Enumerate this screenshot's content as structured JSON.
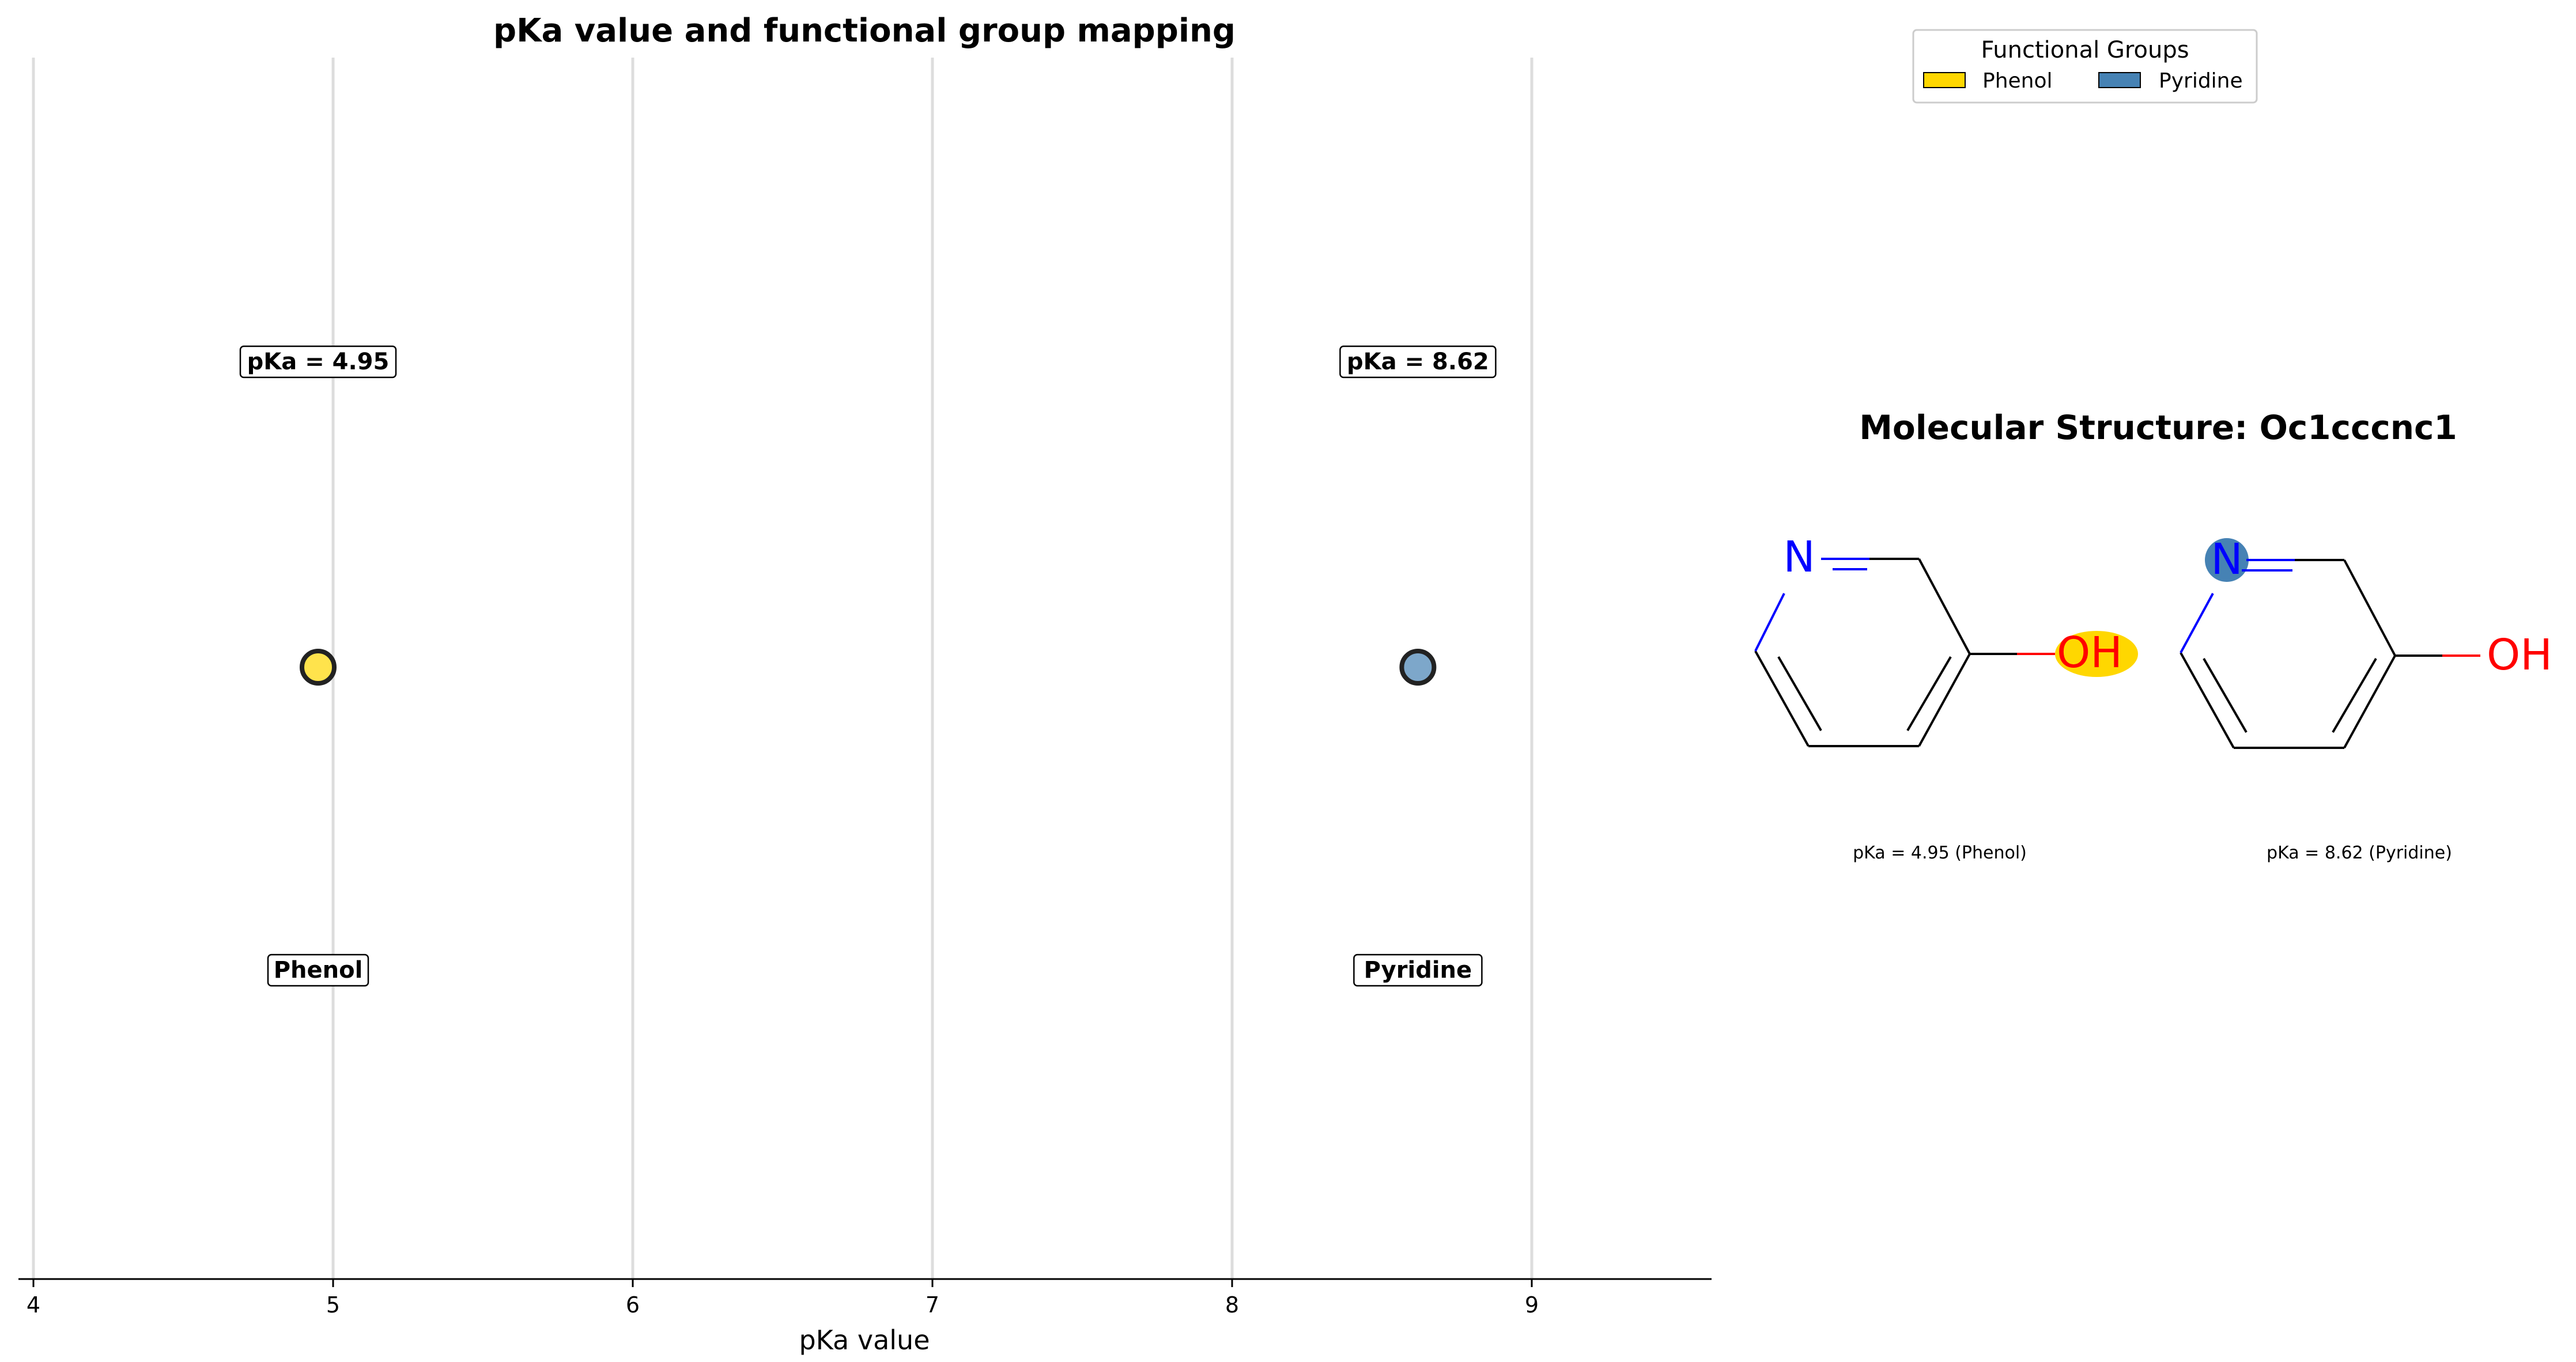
{
  "chart_data": {
    "type": "scatter",
    "title": "pKa value and functional group mapping",
    "xlabel": "pKa value",
    "ylabel": "",
    "xlim": [
      3.95,
      9.6
    ],
    "x_ticks": [
      4,
      5,
      6,
      7,
      8,
      9
    ],
    "x_tick_labels": [
      "4",
      "5",
      "6",
      "7",
      "8",
      "9"
    ],
    "grid": "vertical",
    "points": [
      {
        "name": "Phenol",
        "x": 4.95,
        "color": "#FFD700",
        "value_label": "pKa = 4.95",
        "group_label": "Phenol"
      },
      {
        "name": "Pyridine",
        "x": 8.62,
        "color": "#4682B4",
        "value_label": "pKa = 8.62",
        "group_label": "Pyridine"
      }
    ]
  },
  "legend": {
    "title": "Functional Groups",
    "placement": "top-right",
    "entries": [
      {
        "label": "Phenol",
        "color": "#FFD700"
      },
      {
        "label": "Pyridine",
        "color": "#4682B4"
      }
    ]
  },
  "molecule_panel": {
    "title": "Molecular Structure: Oc1cccnc1",
    "atom_n": "N",
    "atom_oh": "OH",
    "captions": [
      "pKa = 4.95 (Phenol)",
      "pKa = 8.62 (Pyridine)"
    ],
    "atom_colors": {
      "N": "#0000FF",
      "O": "#FF0000"
    },
    "highlight_colors": [
      "#FFD700",
      "#4682B4"
    ]
  }
}
